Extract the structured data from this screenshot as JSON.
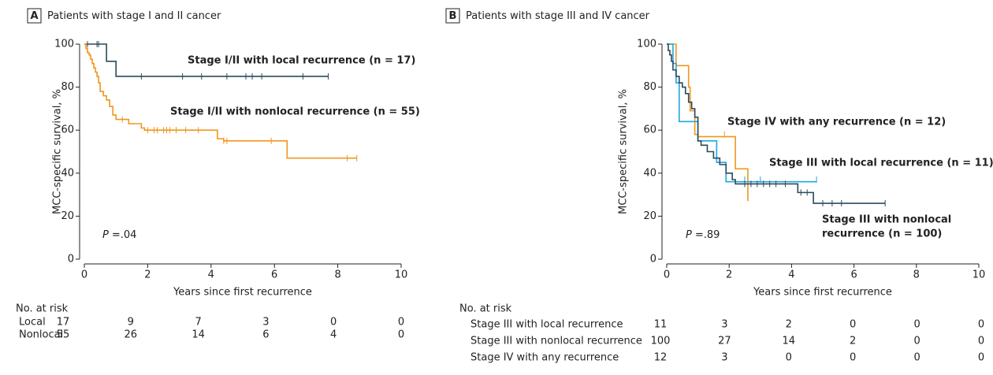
{
  "chart_data": [
    {
      "type": "step",
      "panel": "A",
      "title": "Patients with stage I and II cancer",
      "xlabel": "Years since first recurrence",
      "ylabel": "MCC-specific survival, %",
      "xlim": [
        0,
        10
      ],
      "ylim": [
        0,
        100
      ],
      "xticks": [
        0,
        2,
        4,
        6,
        8,
        10
      ],
      "yticks": [
        0,
        20,
        40,
        60,
        80,
        100
      ],
      "p_label": "P",
      "p_text": "=.04",
      "series": [
        {
          "label_lines": [
            "Stage I/II with local recurrence (n = 17)"
          ],
          "color": "#2b4a5c",
          "x": [
            0,
            0.7,
            1.0,
            7.7
          ],
          "values": [
            100,
            92,
            85,
            85
          ],
          "censor_x": [
            0.1,
            0.4,
            0.45,
            1.8,
            3.1,
            3.7,
            4.5,
            5.1,
            5.3,
            5.6,
            6.9,
            7.7
          ],
          "censor_values": [
            100,
            100,
            100,
            85,
            85,
            85,
            85,
            85,
            85,
            85,
            85,
            85
          ]
        },
        {
          "label_lines": [
            "Stage I/II with nonlocal recurrence (n = 55)"
          ],
          "color": "#f0961e",
          "x": [
            0,
            0.05,
            0.1,
            0.15,
            0.2,
            0.25,
            0.3,
            0.35,
            0.4,
            0.45,
            0.5,
            0.6,
            0.7,
            0.8,
            0.9,
            1.0,
            1.4,
            1.8,
            1.9,
            4.2,
            4.4,
            6.4,
            8.6
          ],
          "values": [
            100,
            98,
            96,
            95,
            93,
            91,
            89,
            87,
            85,
            82,
            78,
            76,
            74,
            71,
            67,
            65,
            63,
            61,
            60,
            56,
            55,
            47,
            47
          ],
          "censor_x": [
            1.2,
            2.0,
            2.2,
            2.3,
            2.5,
            2.6,
            2.7,
            2.9,
            3.2,
            3.6,
            4.4,
            4.5,
            5.9,
            8.3,
            8.6
          ],
          "censor_values": [
            65,
            60,
            60,
            60,
            60,
            60,
            60,
            60,
            60,
            60,
            55,
            55,
            55,
            47,
            47
          ]
        }
      ],
      "risk_table": {
        "title": "No. at risk",
        "rows": [
          {
            "label": "Local",
            "counts": [
              17,
              9,
              7,
              3,
              0,
              0
            ]
          },
          {
            "label": "Nonlocal",
            "counts": [
              55,
              26,
              14,
              6,
              4,
              0
            ]
          }
        ]
      }
    },
    {
      "type": "step",
      "panel": "B",
      "title": "Patients with stage III and IV cancer",
      "xlabel": "Years since first recurrence",
      "ylabel": "MCC-specific survival, %",
      "xlim": [
        0,
        10
      ],
      "ylim": [
        0,
        100
      ],
      "xticks": [
        0,
        2,
        4,
        6,
        8,
        10
      ],
      "yticks": [
        0,
        20,
        40,
        60,
        80,
        100
      ],
      "p_label": "P",
      "p_text": "=.89",
      "series": [
        {
          "label_lines": [
            "Stage IV with any recurrence (n = 12)"
          ],
          "color": "#f0961e",
          "x": [
            0,
            0.3,
            0.7,
            0.75,
            0.9,
            1.0,
            2.2,
            2.6
          ],
          "values": [
            100,
            90,
            80,
            69,
            58,
            57,
            42,
            27
          ],
          "censor_x": [
            1.85
          ],
          "censor_values": [
            58
          ]
        },
        {
          "label_lines": [
            "Stage III with local recurrence (n = 11)"
          ],
          "color": "#1fa8e0",
          "x": [
            0,
            0.2,
            0.3,
            0.4,
            1.0,
            1.6,
            1.9,
            4.8
          ],
          "values": [
            100,
            91,
            82,
            64,
            55,
            45,
            36,
            36
          ],
          "censor_x": [
            2.5,
            3.0,
            4.8
          ],
          "censor_values": [
            37,
            37,
            37
          ]
        },
        {
          "label_lines": [
            "Stage III with nonlocal",
            "recurrence (n = 100)"
          ],
          "color": "#2b4a5c",
          "x": [
            0,
            0.05,
            0.1,
            0.15,
            0.2,
            0.3,
            0.4,
            0.5,
            0.6,
            0.7,
            0.8,
            0.9,
            1.0,
            1.1,
            1.3,
            1.5,
            1.7,
            1.9,
            2.1,
            2.2,
            4.2,
            4.7,
            7.0
          ],
          "values": [
            100,
            97,
            95,
            92,
            88,
            85,
            82,
            80,
            77,
            73,
            70,
            66,
            55,
            53,
            50,
            47,
            44,
            40,
            37,
            35,
            31,
            26,
            26
          ],
          "censor_x": [
            2.5,
            2.7,
            2.9,
            3.1,
            3.3,
            3.5,
            3.8,
            4.3,
            4.5,
            5.0,
            5.3,
            5.6,
            7.0
          ],
          "censor_values": [
            35,
            35,
            35,
            35,
            35,
            35,
            35,
            31,
            31,
            26,
            26,
            26,
            26
          ]
        }
      ],
      "risk_table": {
        "title": "No. at risk",
        "rows": [
          {
            "label": "Stage III with local recurrence",
            "counts": [
              11,
              3,
              2,
              0,
              0,
              0
            ]
          },
          {
            "label": "Stage III with nonlocal recurrence",
            "counts": [
              100,
              27,
              14,
              2,
              0,
              0
            ]
          },
          {
            "label": "Stage IV with any recurrence",
            "counts": [
              12,
              3,
              0,
              0,
              0,
              0
            ]
          }
        ]
      }
    }
  ]
}
